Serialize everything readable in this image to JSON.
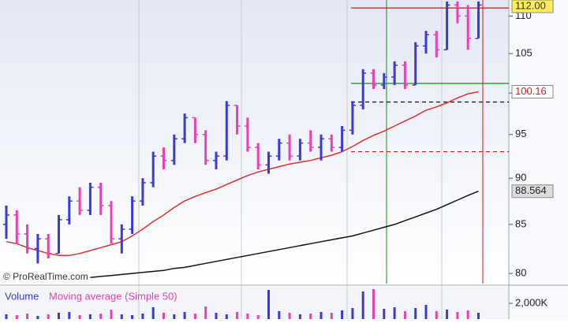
{
  "chart_data": {
    "type": "ohlc",
    "log_scale": true,
    "up_color": "#3a3ad8",
    "down_color": "#e542b4",
    "ylim": [
      79,
      112.2
    ],
    "yticks": [
      80,
      85,
      90,
      95,
      100,
      105,
      110
    ],
    "open": [
      85,
      86,
      84,
      82.5,
      83.5,
      82,
      85.5,
      87.5,
      86.5,
      89,
      87,
      83.5,
      84.5,
      87.5,
      89.5,
      92.5,
      92,
      94.5,
      97,
      95,
      92,
      92.5,
      98.5,
      96,
      93.5,
      91.5,
      92.5,
      94,
      92.5,
      94,
      93.5,
      94.5,
      93.5,
      95.5,
      98.5,
      102.5,
      101,
      102,
      103.5,
      101,
      106,
      107.5,
      105.5,
      111.5,
      110,
      107
    ],
    "high": [
      87,
      86.5,
      85,
      84,
      84,
      86,
      88,
      89,
      89.5,
      89.5,
      87.5,
      85,
      88,
      90,
      93,
      93.5,
      95,
      97.5,
      97,
      95.5,
      93,
      99,
      98.5,
      97,
      94,
      93,
      94.5,
      95,
      94.5,
      95.5,
      95,
      95,
      96,
      99,
      103,
      103,
      102.5,
      104,
      104,
      106.5,
      108,
      108,
      112,
      112,
      111.5,
      112
    ],
    "low": [
      83.5,
      83,
      82,
      81,
      81.5,
      82,
      85,
      86,
      86,
      86,
      83,
      82,
      84,
      87,
      89,
      91,
      91.5,
      94,
      94,
      91.5,
      91,
      92,
      95,
      93,
      91,
      90.5,
      92,
      92,
      92,
      93,
      92,
      93,
      93,
      95,
      98,
      100.5,
      100.5,
      101,
      100.5,
      101,
      105,
      104.5,
      105.5,
      109,
      105.5,
      107
    ],
    "close": [
      86,
      84,
      82.5,
      83.5,
      82,
      85.5,
      87.5,
      86.5,
      89,
      87,
      83.5,
      84.5,
      87.5,
      89.5,
      92.5,
      92,
      94.5,
      97,
      95,
      92,
      92.5,
      98.5,
      96,
      93.5,
      91.5,
      92.5,
      94,
      92.5,
      94,
      93.5,
      94.5,
      93.5,
      95.5,
      98.5,
      102.5,
      101,
      102,
      103.5,
      101,
      106,
      107.5,
      105.5,
      111.5,
      110,
      107,
      111.5
    ],
    "lines": [
      {
        "color": "#e0302c",
        "values": [
          83.2,
          83,
          82.6,
          82.3,
          82,
          81.8,
          81.8,
          82,
          82.3,
          82.6,
          82.9,
          83.2,
          83.8,
          84.5,
          85.3,
          86,
          86.8,
          87.5,
          88,
          88.4,
          88.8,
          89.3,
          89.8,
          90.3,
          90.7,
          91,
          91.3,
          91.6,
          91.8,
          92,
          92.3,
          92.6,
          93,
          93.6,
          94.3,
          94.9,
          95.4,
          96,
          96.6,
          97.2,
          97.9,
          98.3,
          98.8,
          99.4,
          99.9,
          100.16
        ]
      },
      {
        "color": "#111111",
        "values": [
          null,
          null,
          null,
          null,
          null,
          null,
          null,
          null,
          79.6,
          79.7,
          79.8,
          79.9,
          80,
          80.1,
          80.2,
          80.3,
          80.5,
          80.6,
          80.8,
          81,
          81.2,
          81.4,
          81.6,
          81.8,
          82,
          82.2,
          82.4,
          82.6,
          82.8,
          83,
          83.2,
          83.4,
          83.6,
          83.8,
          84.1,
          84.4,
          84.7,
          85,
          85.4,
          85.8,
          86.2,
          86.6,
          87.1,
          87.6,
          88.1,
          88.564
        ]
      }
    ],
    "levels": [
      {
        "value": 111.1,
        "color": "#d01818",
        "dashed": false
      },
      {
        "value": 101.2,
        "color": "#1a8a1a",
        "dashed": false
      },
      {
        "value": 98.9,
        "color": "#111111",
        "dashed": true
      },
      {
        "value": 93,
        "color": "#d01818",
        "dashed": true
      }
    ],
    "last_labels": [
      {
        "value": 112,
        "label": "112.00",
        "color": "#333333",
        "fill": "#ffee55"
      },
      {
        "value": 100.16,
        "label": "100.16",
        "color": "#d02020",
        "fill": "#ffffff"
      },
      {
        "value": 88.564,
        "label": "88.564",
        "color": "#222222",
        "fill": "#dddddd"
      }
    ],
    "watermark": "© ProRealTime.com",
    "volume": {
      "title": "Volume",
      "subtitle": "Moving average (Simple 50)",
      "ylim": [
        0,
        4000000
      ],
      "yticks": [
        {
          "value": 2000000,
          "label": "2,000K"
        }
      ],
      "values": [
        600000,
        500000,
        700000,
        400000,
        600000,
        800000,
        900000,
        500000,
        600000,
        700000,
        1200000,
        600000,
        500000,
        700000,
        1500000,
        800000,
        600000,
        900000,
        700000,
        1600000,
        800000,
        600000,
        900000,
        700000,
        500000,
        3700000,
        1000000,
        800000,
        600000,
        700000,
        900000,
        800000,
        1100000,
        1400000,
        3500000,
        3800000,
        1300000,
        1500000,
        1000000,
        1400000,
        1800000,
        1000000,
        1200000,
        900000,
        1100000,
        800000
      ]
    }
  }
}
